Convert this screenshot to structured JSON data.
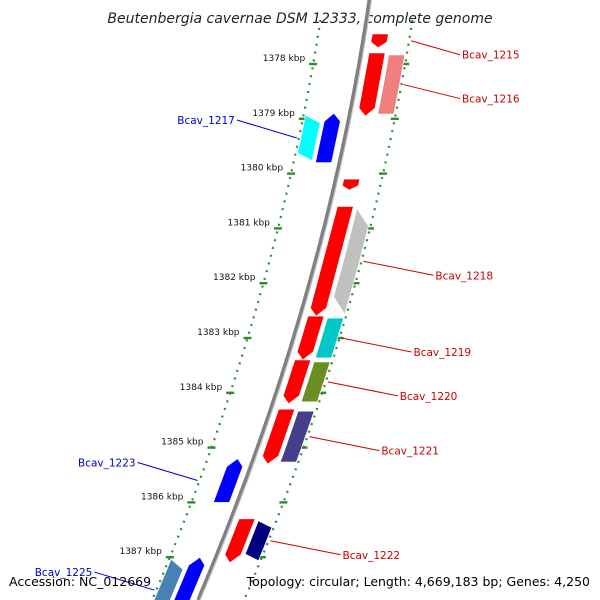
{
  "title": "Beutenbergia cavernae DSM 12333, complete genome",
  "accession": "Accession: NC_012669",
  "summary": "Topology: circular; Length: 4,669,183 bp; Genes: 4,250",
  "colors": {
    "backbone": "#808080",
    "ruler": "#2e8b2e",
    "forward_label": "#0000cc",
    "reverse_label": "#cc0000"
  },
  "ticks": [
    {
      "kb": 1378,
      "label": "1378 kbp"
    },
    {
      "kb": 1379,
      "label": "1379 kbp"
    },
    {
      "kb": 1380,
      "label": "1380 kbp"
    },
    {
      "kb": 1381,
      "label": "1381 kbp"
    },
    {
      "kb": 1382,
      "label": "1382 kbp"
    },
    {
      "kb": 1383,
      "label": "1383 kbp"
    },
    {
      "kb": 1384,
      "label": "1384 kbp"
    },
    {
      "kb": 1385,
      "label": "1385 kbp"
    },
    {
      "kb": 1386,
      "label": "1386 kbp"
    },
    {
      "kb": 1387,
      "label": "1387 kbp"
    }
  ],
  "genes": [
    {
      "name": "Bcav_1215",
      "strand": "-",
      "start": 1377.45,
      "end": 1377.7,
      "cds_color": "#ff0000",
      "feat_color": null,
      "labeled": true
    },
    {
      "name": "Bcav_1216",
      "strand": "-",
      "start": 1377.8,
      "end": 1378.95,
      "cds_color": "#ff0000",
      "feat_color": "#f08080",
      "labeled": true
    },
    {
      "name": "Bcav_1217",
      "strand": "+",
      "start": 1378.9,
      "end": 1379.8,
      "cds_color": "#0000ff",
      "feat_color": "#00ffff",
      "labeled": true
    },
    {
      "name": "",
      "strand": "-",
      "start": 1380.1,
      "end": 1380.3,
      "cds_color": "#ff0000",
      "feat_color": null,
      "labeled": false
    },
    {
      "name": "Bcav_1218",
      "strand": "-",
      "start": 1380.6,
      "end": 1382.6,
      "cds_color": "#ff0000",
      "feat_color": "#c0c0c0",
      "labeled": true
    },
    {
      "name": "Bcav_1219",
      "strand": "-",
      "start": 1382.6,
      "end": 1383.4,
      "cds_color": "#ff0000",
      "feat_color": "#00c8c8",
      "labeled": true
    },
    {
      "name": "Bcav_1220",
      "strand": "-",
      "start": 1383.4,
      "end": 1384.2,
      "cds_color": "#ff0000",
      "feat_color": "#6b8e23",
      "labeled": true
    },
    {
      "name": "Bcav_1221",
      "strand": "-",
      "start": 1384.3,
      "end": 1385.3,
      "cds_color": "#ff0000",
      "feat_color": "#483d8b",
      "labeled": true
    },
    {
      "name": "Bcav_1222",
      "strand": "-",
      "start": 1386.3,
      "end": 1387.1,
      "cds_color": "#ff0000",
      "feat_color": "#000080",
      "labeled": true
    },
    {
      "name": "Bcav_1223",
      "strand": "+",
      "start": 1385.2,
      "end": 1386.0,
      "cds_color": "#0000ff",
      "feat_color": null,
      "labeled": true
    },
    {
      "name": "Bcav_1225",
      "strand": "+",
      "start": 1387.0,
      "end": 1388.2,
      "cds_color": "#0000ff",
      "feat_color": "#4682b4",
      "labeled": true
    }
  ]
}
